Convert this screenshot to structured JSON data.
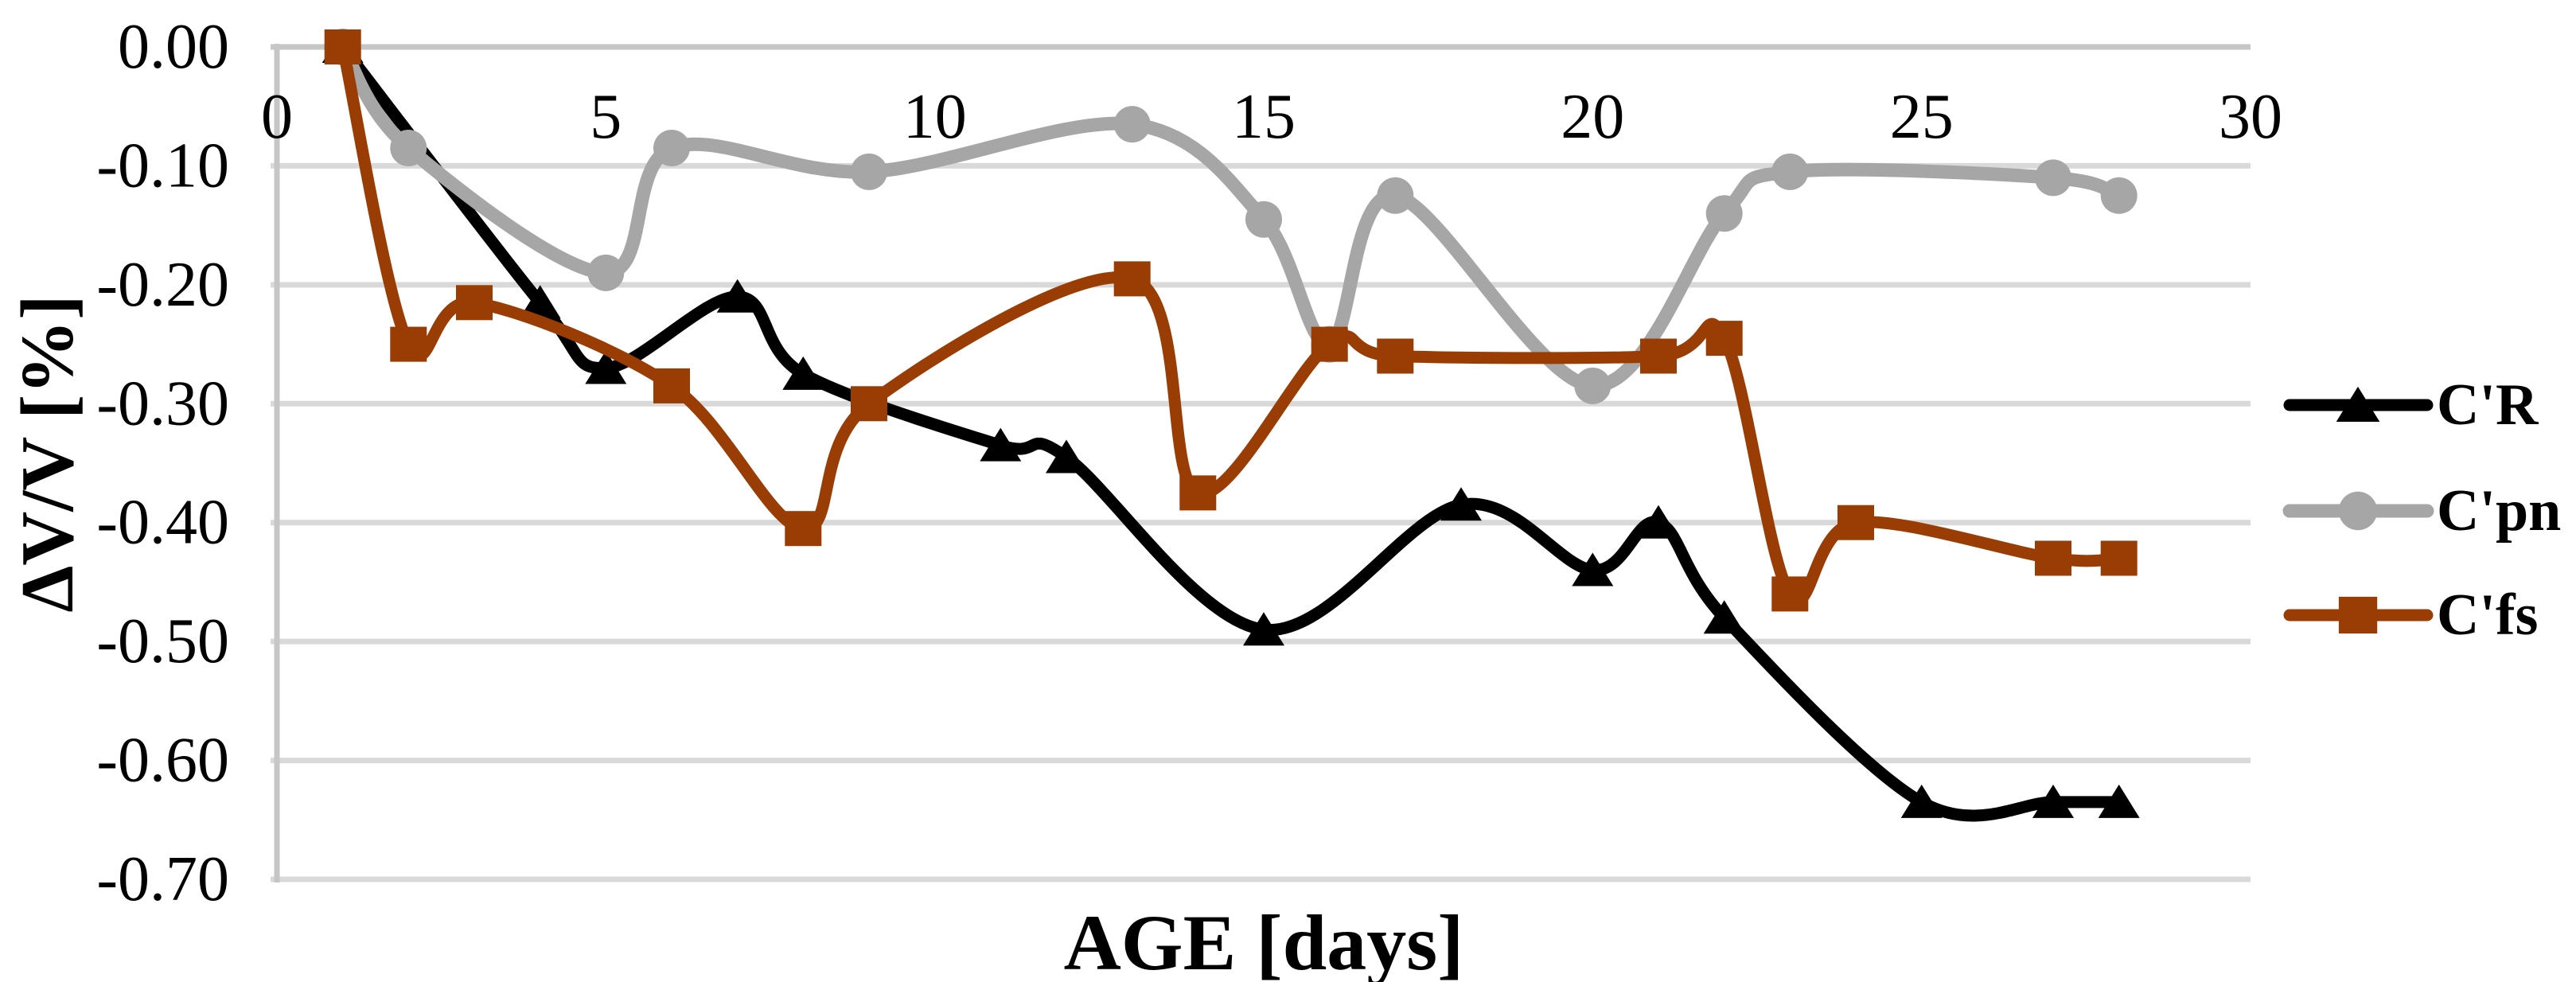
{
  "figure": {
    "background": "#FFFFFF",
    "grid_color": "#D9D9D9",
    "axis_color": "#C6C6C6",
    "text_color": "#000000"
  },
  "chart_data": {
    "type": "line",
    "title": "",
    "xlabel": "AGE [days]",
    "ylabel": "ΔV/V [%]",
    "xlim": [
      0,
      30
    ],
    "ylim": [
      -0.7,
      0.0
    ],
    "grid": true,
    "legend_position": "right",
    "x_ticks": [
      {
        "v": 0,
        "label": "0"
      },
      {
        "v": 5,
        "label": "5"
      },
      {
        "v": 10,
        "label": "10"
      },
      {
        "v": 15,
        "label": "15"
      },
      {
        "v": 20,
        "label": "20"
      },
      {
        "v": 25,
        "label": "25"
      },
      {
        "v": 30,
        "label": "30"
      }
    ],
    "y_ticks": [
      {
        "v": 0.0,
        "label": "0.00"
      },
      {
        "v": -0.1,
        "label": "-0.10"
      },
      {
        "v": -0.2,
        "label": "-0.20"
      },
      {
        "v": -0.3,
        "label": "-0.30"
      },
      {
        "v": -0.4,
        "label": "-0.40"
      },
      {
        "v": -0.5,
        "label": "-0.50"
      },
      {
        "v": -0.6,
        "label": "-0.60"
      },
      {
        "v": -0.7,
        "label": "-0.70"
      }
    ],
    "series": [
      {
        "name": "C'R",
        "color": "#000000",
        "marker": "triangle",
        "points": [
          [
            1,
            0.0
          ],
          [
            4,
            -0.215
          ],
          [
            5,
            -0.27
          ],
          [
            7,
            -0.21
          ],
          [
            8,
            -0.275
          ],
          [
            11,
            -0.335
          ],
          [
            12,
            -0.345
          ],
          [
            15,
            -0.49
          ],
          [
            18,
            -0.385
          ],
          [
            20,
            -0.44
          ],
          [
            21,
            -0.4
          ],
          [
            22,
            -0.48
          ],
          [
            25,
            -0.635
          ],
          [
            27,
            -0.635
          ],
          [
            28,
            -0.635
          ]
        ]
      },
      {
        "name": "C'pn",
        "color": "#A6A6A6",
        "marker": "circle",
        "points": [
          [
            1,
            0.0
          ],
          [
            2,
            -0.085
          ],
          [
            5,
            -0.19
          ],
          [
            6,
            -0.085
          ],
          [
            9,
            -0.105
          ],
          [
            13,
            -0.065
          ],
          [
            15,
            -0.145
          ],
          [
            16,
            -0.25
          ],
          [
            17,
            -0.125
          ],
          [
            20,
            -0.285
          ],
          [
            22,
            -0.14
          ],
          [
            23,
            -0.105
          ],
          [
            27,
            -0.11
          ],
          [
            28,
            -0.125
          ]
        ]
      },
      {
        "name": "C'fs",
        "color": "#9A3D05",
        "marker": "square",
        "points": [
          [
            1,
            0.0
          ],
          [
            2,
            -0.25
          ],
          [
            3,
            -0.215
          ],
          [
            6,
            -0.285
          ],
          [
            8,
            -0.405
          ],
          [
            9,
            -0.3
          ],
          [
            13,
            -0.195
          ],
          [
            14,
            -0.375
          ],
          [
            16,
            -0.25
          ],
          [
            17,
            -0.26
          ],
          [
            21,
            -0.26
          ],
          [
            22,
            -0.245
          ],
          [
            23,
            -0.46
          ],
          [
            24,
            -0.4
          ],
          [
            27,
            -0.43
          ],
          [
            28,
            -0.43
          ]
        ]
      }
    ]
  }
}
